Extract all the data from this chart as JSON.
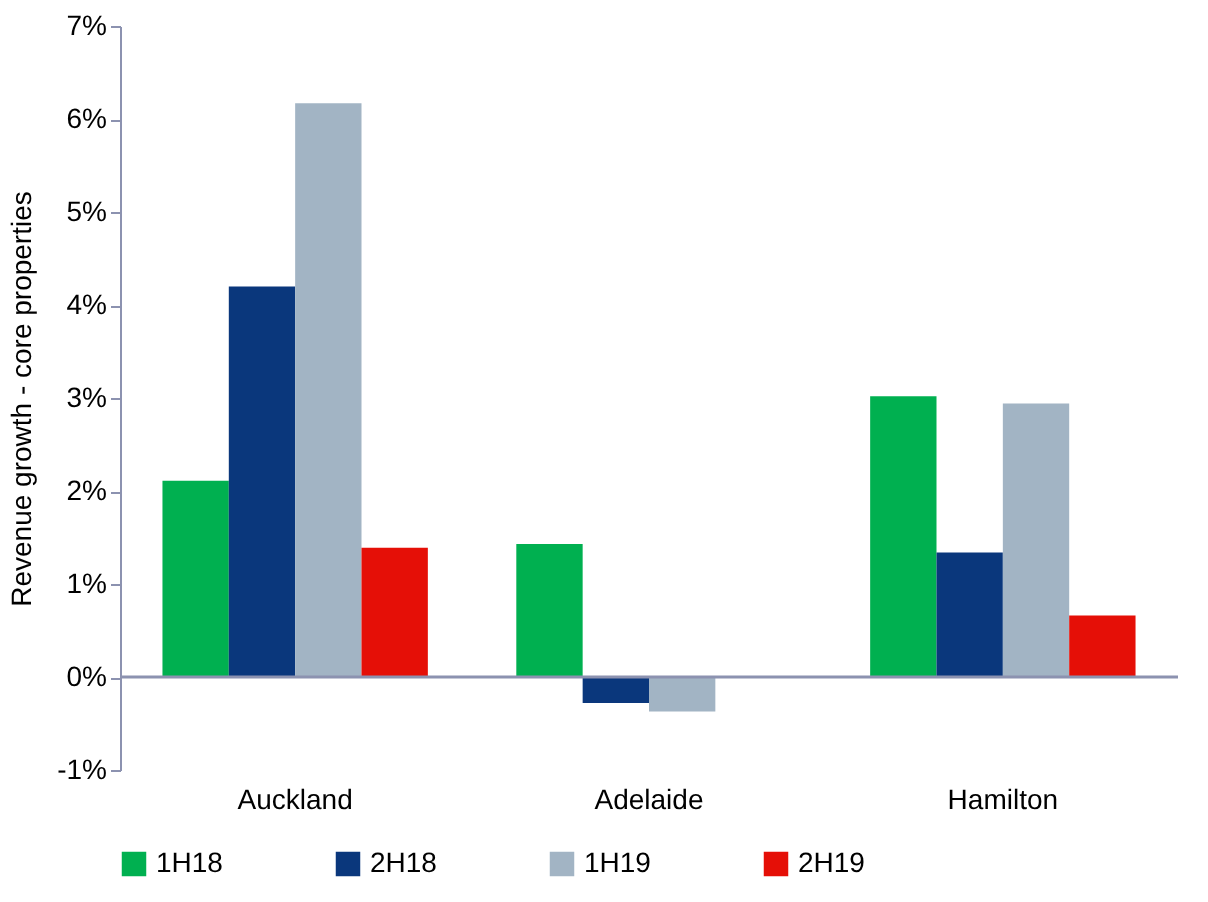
{
  "chart_data": {
    "type": "bar",
    "ylabel": "Revenue growth - core properties",
    "categories": [
      "Auckland",
      "Adelaide",
      "Hamilton"
    ],
    "series": [
      {
        "name": "1H18",
        "color": "#00b050",
        "values": [
          2.11,
          1.43,
          3.02
        ]
      },
      {
        "name": "2H18",
        "color": "#0a377c",
        "values": [
          4.2,
          -0.28,
          1.34
        ]
      },
      {
        "name": "1H19",
        "color": "#a2b4c4",
        "values": [
          6.17,
          -0.37,
          2.94
        ]
      },
      {
        "name": "2H19",
        "color": "#e50f07",
        "values": [
          1.39,
          null,
          0.66
        ]
      }
    ],
    "ylim": [
      -1,
      7
    ],
    "yticks": [
      {
        "value": -1,
        "label": "-1%"
      },
      {
        "value": 0,
        "label": "0%"
      },
      {
        "value": 1,
        "label": "1%"
      },
      {
        "value": 2,
        "label": "2%"
      },
      {
        "value": 3,
        "label": "3%"
      },
      {
        "value": 4,
        "label": "4%"
      },
      {
        "value": 5,
        "label": "5%"
      },
      {
        "value": 6,
        "label": "6%"
      },
      {
        "value": 7,
        "label": "7%"
      }
    ],
    "ref_lines": [
      {
        "axis": "y",
        "value": 0,
        "color": "#8c92b0"
      }
    ],
    "grid": false,
    "legend": "bottom"
  }
}
